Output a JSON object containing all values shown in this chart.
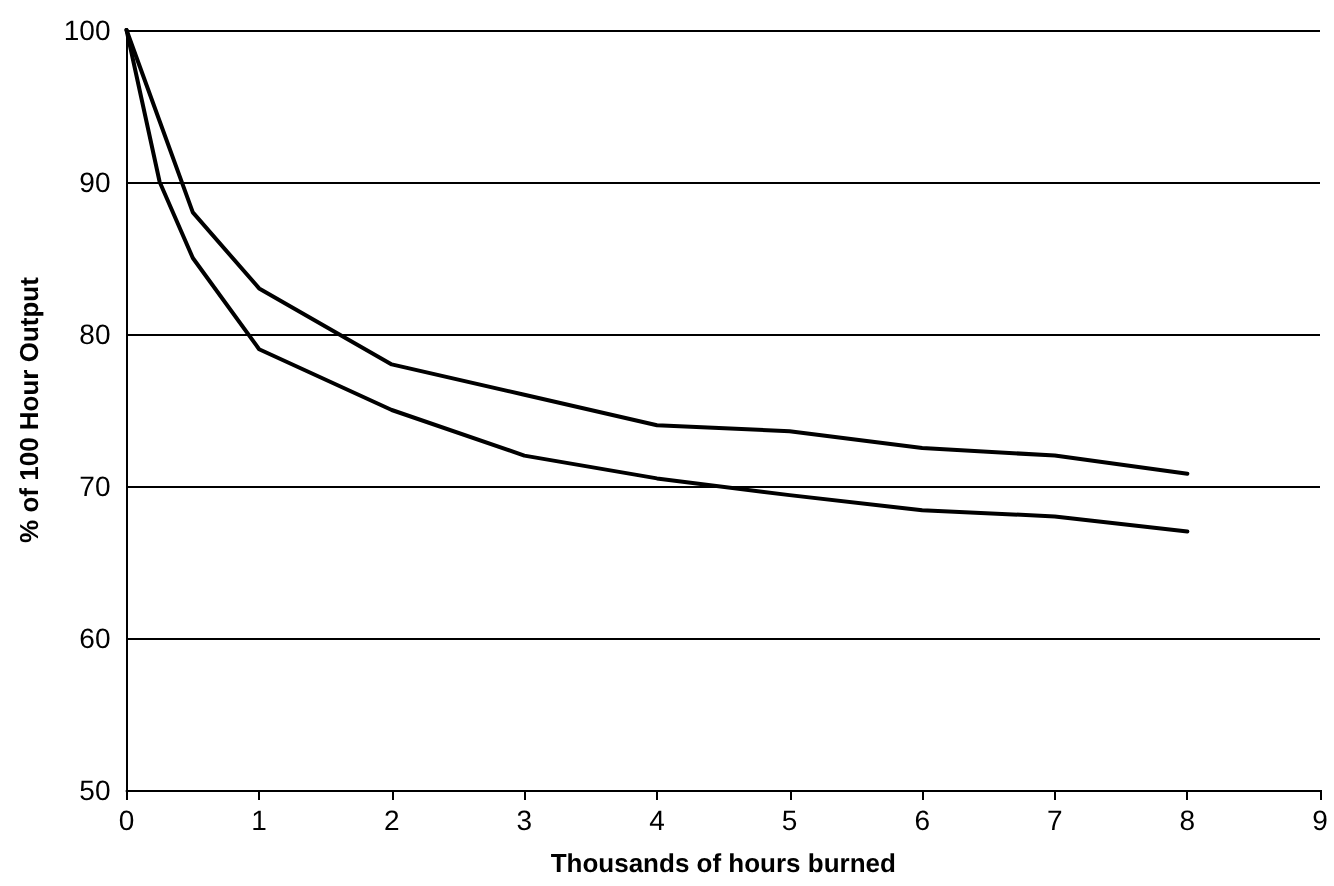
{
  "chart_data": {
    "type": "line",
    "xlabel": "Thousands of hours burned",
    "ylabel": "% of 100 Hour Output",
    "xlim": [
      0,
      9
    ],
    "xticks": [
      0,
      1,
      2,
      3,
      4,
      5,
      6,
      7,
      8,
      9
    ],
    "ylim": [
      50,
      100
    ],
    "yticks": [
      50,
      60,
      70,
      80,
      90,
      100
    ],
    "grid": "y",
    "marker": "none",
    "line_style": "solid",
    "series": [
      {
        "color": "#000000",
        "x": [
          0,
          0.25,
          0.5,
          1,
          2,
          3,
          4,
          5,
          6,
          7,
          8
        ],
        "values": [
          100,
          94,
          88,
          83,
          78,
          76,
          74,
          73.6,
          72.5,
          72,
          70.8
        ]
      },
      {
        "color": "#000000",
        "x": [
          0,
          0.25,
          0.5,
          1,
          2,
          3,
          4,
          5,
          6,
          7,
          8
        ],
        "values": [
          100,
          90,
          85,
          79,
          75,
          72,
          70.5,
          69.4,
          68.4,
          68,
          67
        ]
      }
    ]
  }
}
